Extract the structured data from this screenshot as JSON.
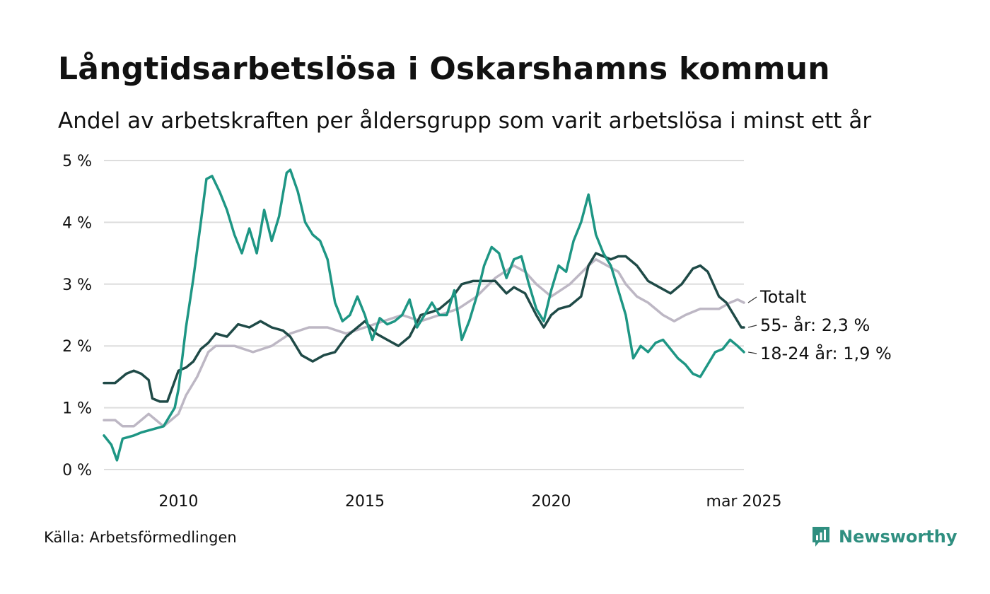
{
  "title": "Långtidsarbetslösa i Oskarshamns kommun",
  "subtitle": "Andel av arbetskraften per åldersgrupp som varit arbetslösa i minst ett år",
  "source": "Källa: Arbetsförmedlingen",
  "brand": "Newsworthy",
  "colors": {
    "totalt": "#bdb7c4",
    "age55": "#1f4a47",
    "age18": "#1e9684",
    "grid": "#dddddd",
    "brand": "#2f8f80"
  },
  "chart_data": {
    "type": "line",
    "x_range": [
      2008.0,
      2025.17
    ],
    "ylim": [
      0,
      5
    ],
    "y_ticks": [
      {
        "value": 0,
        "label": "0 %"
      },
      {
        "value": 1,
        "label": "1 %"
      },
      {
        "value": 2,
        "label": "2 %"
      },
      {
        "value": 3,
        "label": "3 %"
      },
      {
        "value": 4,
        "label": "4 %"
      },
      {
        "value": 5,
        "label": "5 %"
      }
    ],
    "x_ticks": [
      {
        "value": 2010,
        "label": "2010"
      },
      {
        "value": 2015,
        "label": "2015"
      },
      {
        "value": 2020,
        "label": "2020"
      },
      {
        "value": 2025.17,
        "label": "mar 2025"
      }
    ],
    "grid": true,
    "series": [
      {
        "name": "Totalt",
        "end_label": "Totalt",
        "color_key": "totalt",
        "points": [
          [
            2008.0,
            0.8
          ],
          [
            2008.3,
            0.8
          ],
          [
            2008.5,
            0.7
          ],
          [
            2008.8,
            0.7
          ],
          [
            2009.0,
            0.8
          ],
          [
            2009.2,
            0.9
          ],
          [
            2009.4,
            0.8
          ],
          [
            2009.6,
            0.7
          ],
          [
            2009.8,
            0.8
          ],
          [
            2010.0,
            0.9
          ],
          [
            2010.2,
            1.2
          ],
          [
            2010.5,
            1.5
          ],
          [
            2010.8,
            1.9
          ],
          [
            2011.0,
            2.0
          ],
          [
            2011.5,
            2.0
          ],
          [
            2012.0,
            1.9
          ],
          [
            2012.5,
            2.0
          ],
          [
            2013.0,
            2.2
          ],
          [
            2013.5,
            2.3
          ],
          [
            2014.0,
            2.3
          ],
          [
            2014.5,
            2.2
          ],
          [
            2015.0,
            2.3
          ],
          [
            2015.5,
            2.4
          ],
          [
            2016.0,
            2.5
          ],
          [
            2016.5,
            2.4
          ],
          [
            2017.0,
            2.5
          ],
          [
            2017.5,
            2.6
          ],
          [
            2018.0,
            2.8
          ],
          [
            2018.5,
            3.1
          ],
          [
            2019.0,
            3.3
          ],
          [
            2019.3,
            3.2
          ],
          [
            2019.6,
            3.0
          ],
          [
            2020.0,
            2.8
          ],
          [
            2020.5,
            3.0
          ],
          [
            2021.0,
            3.3
          ],
          [
            2021.2,
            3.4
          ],
          [
            2021.5,
            3.3
          ],
          [
            2021.8,
            3.2
          ],
          [
            2022.0,
            3.0
          ],
          [
            2022.3,
            2.8
          ],
          [
            2022.6,
            2.7
          ],
          [
            2023.0,
            2.5
          ],
          [
            2023.3,
            2.4
          ],
          [
            2023.6,
            2.5
          ],
          [
            2024.0,
            2.6
          ],
          [
            2024.5,
            2.6
          ],
          [
            2024.8,
            2.7
          ],
          [
            2025.0,
            2.75
          ],
          [
            2025.17,
            2.7
          ]
        ]
      },
      {
        "name": "55- år",
        "end_label": "55- år: 2,3 %",
        "color_key": "age55",
        "points": [
          [
            2008.0,
            1.4
          ],
          [
            2008.3,
            1.4
          ],
          [
            2008.6,
            1.55
          ],
          [
            2008.8,
            1.6
          ],
          [
            2009.0,
            1.55
          ],
          [
            2009.2,
            1.45
          ],
          [
            2009.3,
            1.15
          ],
          [
            2009.5,
            1.1
          ],
          [
            2009.7,
            1.1
          ],
          [
            2010.0,
            1.6
          ],
          [
            2010.2,
            1.65
          ],
          [
            2010.4,
            1.75
          ],
          [
            2010.6,
            1.95
          ],
          [
            2010.8,
            2.05
          ],
          [
            2011.0,
            2.2
          ],
          [
            2011.3,
            2.15
          ],
          [
            2011.6,
            2.35
          ],
          [
            2011.9,
            2.3
          ],
          [
            2012.2,
            2.4
          ],
          [
            2012.5,
            2.3
          ],
          [
            2012.8,
            2.25
          ],
          [
            2013.0,
            2.15
          ],
          [
            2013.3,
            1.85
          ],
          [
            2013.6,
            1.75
          ],
          [
            2013.9,
            1.85
          ],
          [
            2014.2,
            1.9
          ],
          [
            2014.5,
            2.15
          ],
          [
            2014.8,
            2.3
          ],
          [
            2015.0,
            2.4
          ],
          [
            2015.3,
            2.2
          ],
          [
            2015.6,
            2.1
          ],
          [
            2015.9,
            2.0
          ],
          [
            2016.2,
            2.15
          ],
          [
            2016.5,
            2.5
          ],
          [
            2016.8,
            2.55
          ],
          [
            2017.0,
            2.6
          ],
          [
            2017.3,
            2.75
          ],
          [
            2017.6,
            3.0
          ],
          [
            2017.9,
            3.05
          ],
          [
            2018.2,
            3.05
          ],
          [
            2018.5,
            3.05
          ],
          [
            2018.8,
            2.85
          ],
          [
            2019.0,
            2.95
          ],
          [
            2019.3,
            2.85
          ],
          [
            2019.6,
            2.5
          ],
          [
            2019.8,
            2.3
          ],
          [
            2020.0,
            2.5
          ],
          [
            2020.2,
            2.6
          ],
          [
            2020.5,
            2.65
          ],
          [
            2020.8,
            2.8
          ],
          [
            2021.0,
            3.3
          ],
          [
            2021.2,
            3.5
          ],
          [
            2021.4,
            3.45
          ],
          [
            2021.6,
            3.4
          ],
          [
            2021.8,
            3.45
          ],
          [
            2022.0,
            3.45
          ],
          [
            2022.3,
            3.3
          ],
          [
            2022.6,
            3.05
          ],
          [
            2022.9,
            2.95
          ],
          [
            2023.2,
            2.85
          ],
          [
            2023.5,
            3.0
          ],
          [
            2023.8,
            3.25
          ],
          [
            2024.0,
            3.3
          ],
          [
            2024.2,
            3.2
          ],
          [
            2024.5,
            2.8
          ],
          [
            2024.7,
            2.7
          ],
          [
            2024.9,
            2.5
          ],
          [
            2025.1,
            2.3
          ],
          [
            2025.17,
            2.3
          ]
        ]
      },
      {
        "name": "18-24 år",
        "end_label": "18-24 år: 1,9 %",
        "color_key": "age18",
        "points": [
          [
            2008.0,
            0.55
          ],
          [
            2008.2,
            0.4
          ],
          [
            2008.35,
            0.15
          ],
          [
            2008.5,
            0.5
          ],
          [
            2008.8,
            0.55
          ],
          [
            2009.0,
            0.6
          ],
          [
            2009.3,
            0.65
          ],
          [
            2009.6,
            0.7
          ],
          [
            2009.9,
            1.0
          ],
          [
            2010.0,
            1.3
          ],
          [
            2010.2,
            2.3
          ],
          [
            2010.4,
            3.1
          ],
          [
            2010.6,
            4.0
          ],
          [
            2010.75,
            4.7
          ],
          [
            2010.9,
            4.75
          ],
          [
            2011.1,
            4.5
          ],
          [
            2011.3,
            4.2
          ],
          [
            2011.5,
            3.8
          ],
          [
            2011.7,
            3.5
          ],
          [
            2011.9,
            3.9
          ],
          [
            2012.1,
            3.5
          ],
          [
            2012.3,
            4.2
          ],
          [
            2012.5,
            3.7
          ],
          [
            2012.7,
            4.1
          ],
          [
            2012.9,
            4.8
          ],
          [
            2013.0,
            4.85
          ],
          [
            2013.2,
            4.5
          ],
          [
            2013.4,
            4.0
          ],
          [
            2013.6,
            3.8
          ],
          [
            2013.8,
            3.7
          ],
          [
            2014.0,
            3.4
          ],
          [
            2014.2,
            2.7
          ],
          [
            2014.4,
            2.4
          ],
          [
            2014.6,
            2.5
          ],
          [
            2014.8,
            2.8
          ],
          [
            2015.0,
            2.5
          ],
          [
            2015.2,
            2.1
          ],
          [
            2015.4,
            2.45
          ],
          [
            2015.6,
            2.35
          ],
          [
            2015.8,
            2.4
          ],
          [
            2016.0,
            2.5
          ],
          [
            2016.2,
            2.75
          ],
          [
            2016.4,
            2.3
          ],
          [
            2016.6,
            2.5
          ],
          [
            2016.8,
            2.7
          ],
          [
            2017.0,
            2.5
          ],
          [
            2017.2,
            2.5
          ],
          [
            2017.4,
            2.9
          ],
          [
            2017.6,
            2.1
          ],
          [
            2017.8,
            2.4
          ],
          [
            2018.0,
            2.8
          ],
          [
            2018.2,
            3.3
          ],
          [
            2018.4,
            3.6
          ],
          [
            2018.6,
            3.5
          ],
          [
            2018.8,
            3.1
          ],
          [
            2019.0,
            3.4
          ],
          [
            2019.2,
            3.45
          ],
          [
            2019.4,
            3.0
          ],
          [
            2019.6,
            2.6
          ],
          [
            2019.8,
            2.4
          ],
          [
            2020.0,
            2.9
          ],
          [
            2020.2,
            3.3
          ],
          [
            2020.4,
            3.2
          ],
          [
            2020.6,
            3.7
          ],
          [
            2020.8,
            4.0
          ],
          [
            2021.0,
            4.45
          ],
          [
            2021.2,
            3.8
          ],
          [
            2021.4,
            3.5
          ],
          [
            2021.6,
            3.3
          ],
          [
            2021.8,
            2.9
          ],
          [
            2022.0,
            2.5
          ],
          [
            2022.2,
            1.8
          ],
          [
            2022.4,
            2.0
          ],
          [
            2022.6,
            1.9
          ],
          [
            2022.8,
            2.05
          ],
          [
            2023.0,
            2.1
          ],
          [
            2023.2,
            1.95
          ],
          [
            2023.4,
            1.8
          ],
          [
            2023.6,
            1.7
          ],
          [
            2023.8,
            1.55
          ],
          [
            2024.0,
            1.5
          ],
          [
            2024.2,
            1.7
          ],
          [
            2024.4,
            1.9
          ],
          [
            2024.6,
            1.95
          ],
          [
            2024.8,
            2.1
          ],
          [
            2025.0,
            2.0
          ],
          [
            2025.17,
            1.9
          ]
        ]
      }
    ]
  }
}
